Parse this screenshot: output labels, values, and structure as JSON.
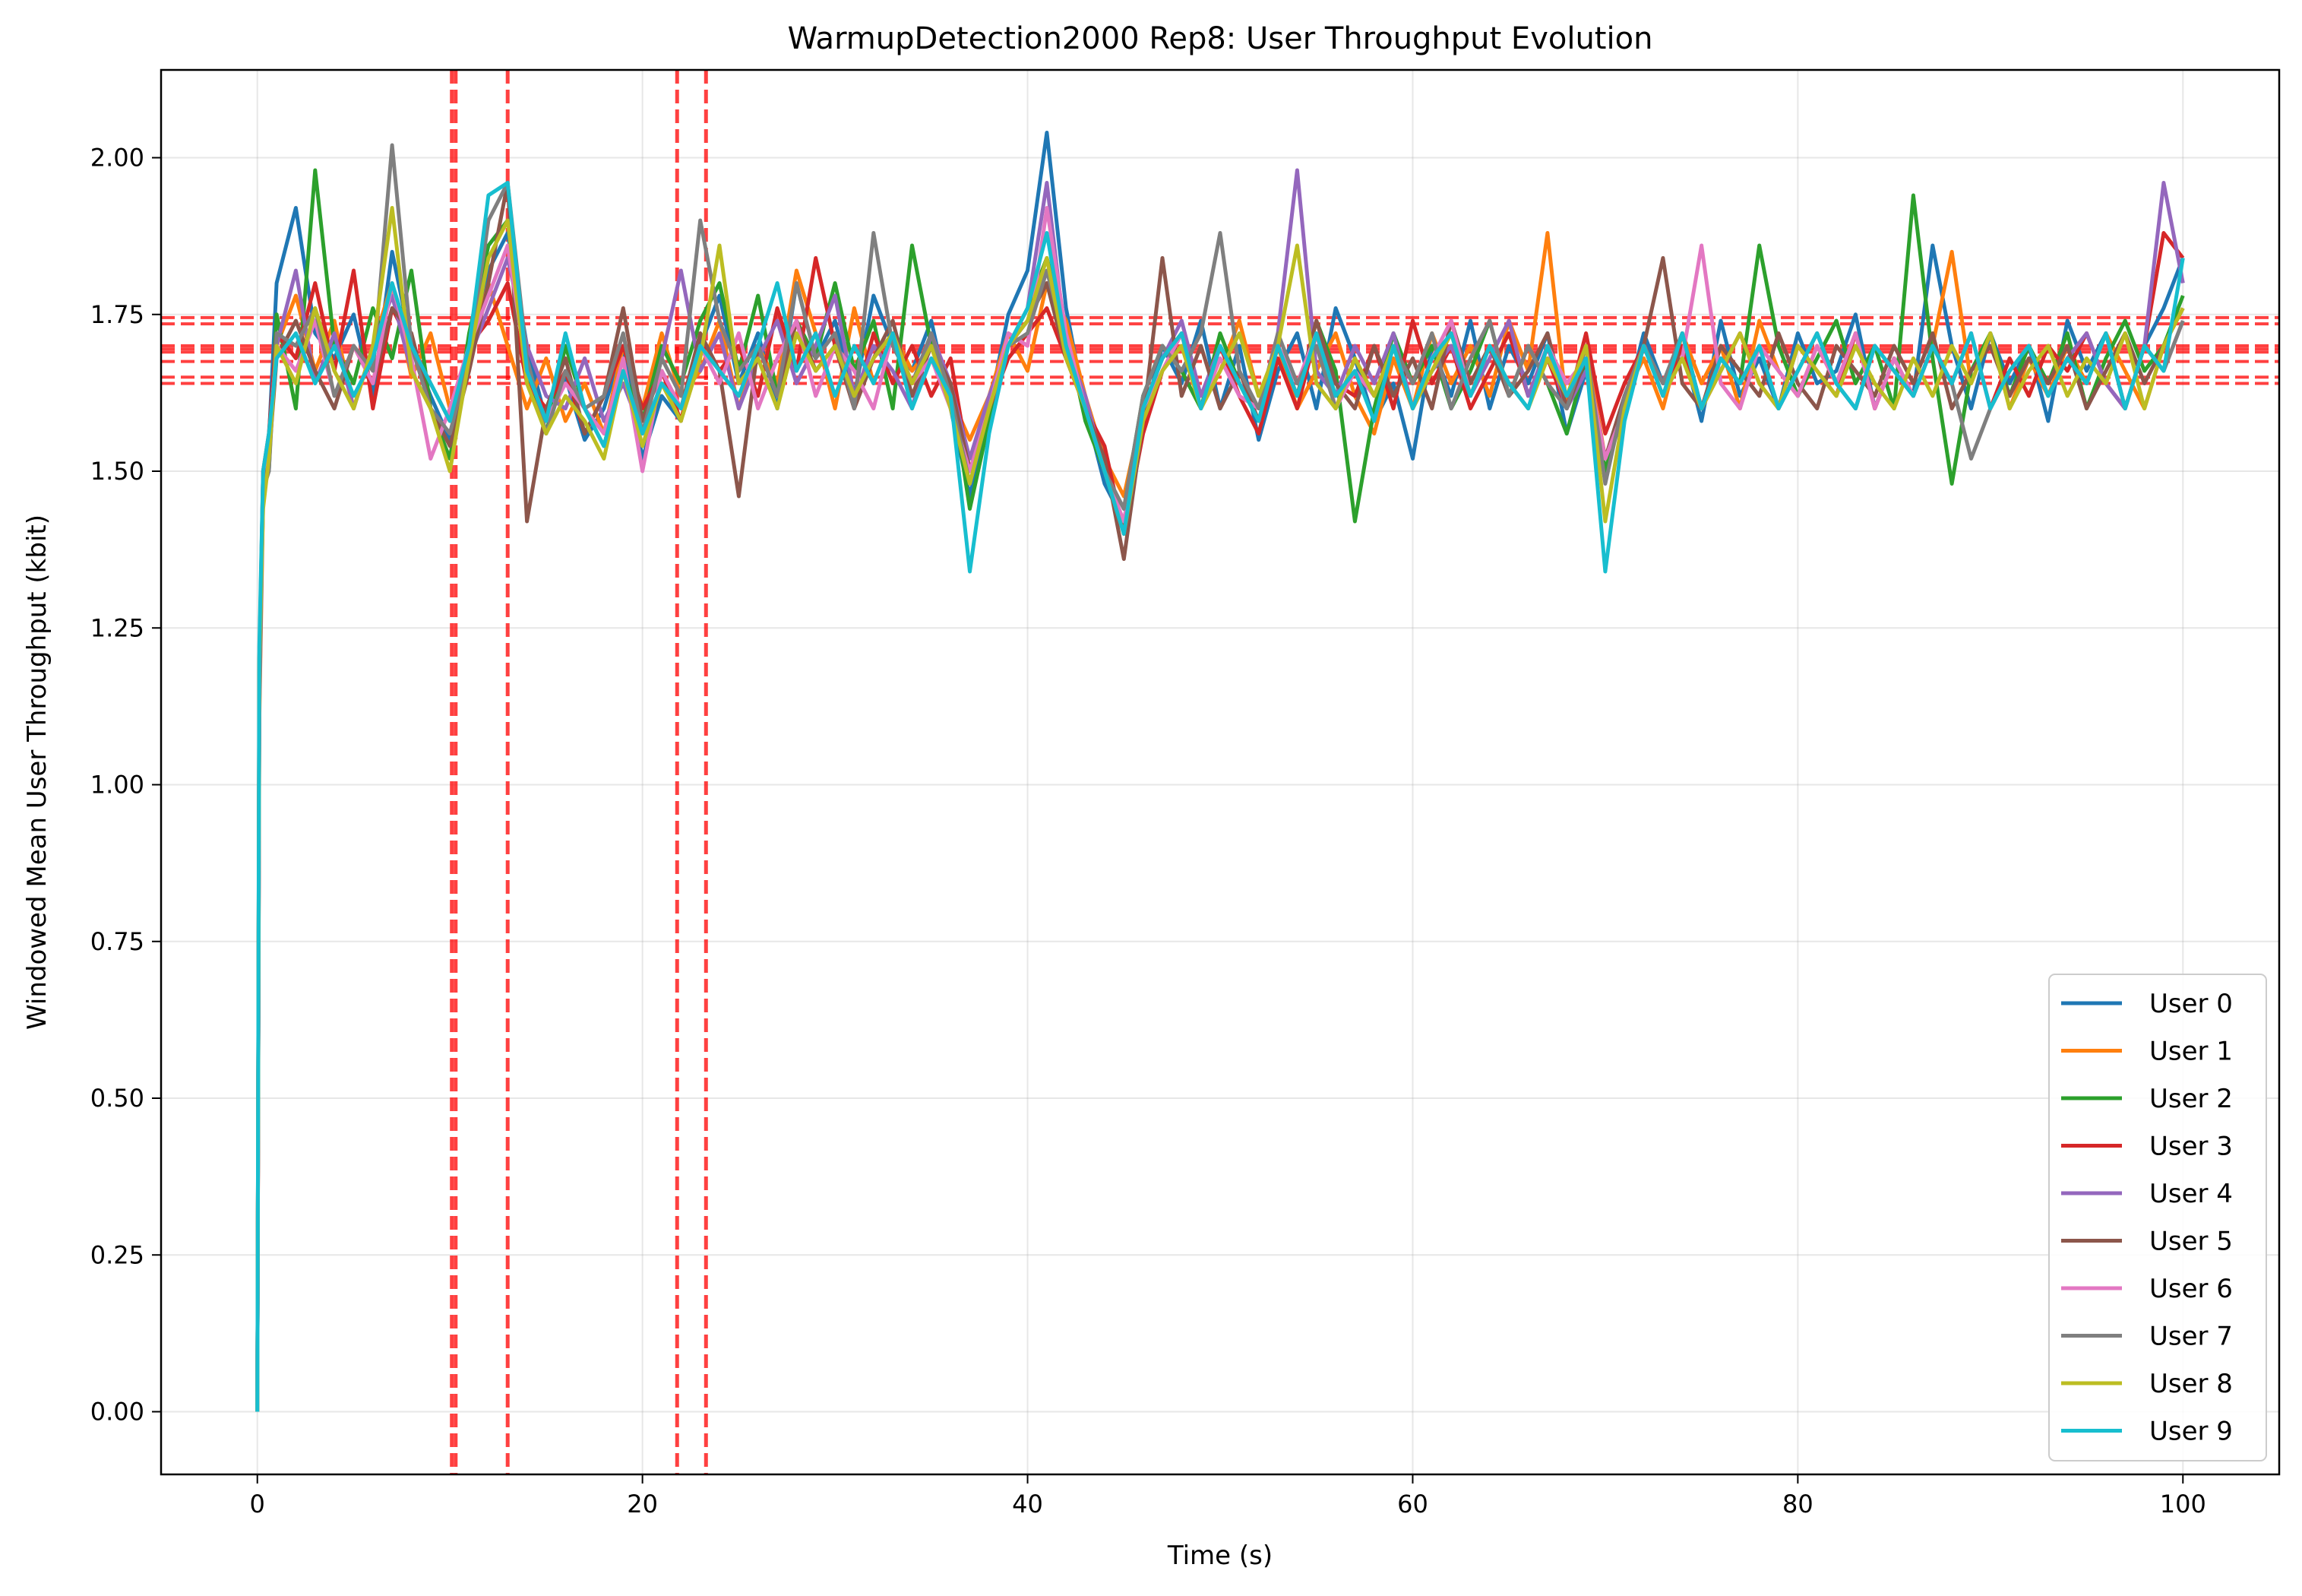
{
  "chart_data": {
    "type": "line",
    "title": "WarmupDetection2000 Rep8: User Throughput Evolution",
    "xlabel": "Time (s)",
    "ylabel": "Windowed Mean User Throughput (kbit)",
    "xlim": [
      -5,
      105
    ],
    "ylim": [
      -0.1,
      2.14
    ],
    "xticks": [
      0,
      20,
      40,
      60,
      80,
      100
    ],
    "yticks": [
      0.0,
      0.25,
      0.5,
      0.75,
      1.0,
      1.25,
      1.5,
      1.75,
      2.0
    ],
    "xtick_labels": [
      "0",
      "20",
      "40",
      "60",
      "80",
      "100"
    ],
    "ytick_labels": [
      "0.00",
      "0.25",
      "0.50",
      "0.75",
      "1.00",
      "1.25",
      "1.50",
      "1.75",
      "2.00"
    ],
    "grid": true,
    "legend_position": "bottom-right",
    "x": [
      0,
      0.1,
      0.3,
      0.6,
      1,
      2,
      3,
      4,
      5,
      6,
      7,
      8,
      9,
      10,
      11,
      12,
      13,
      14,
      15,
      16,
      17,
      18,
      19,
      20,
      21,
      22,
      23,
      24,
      25,
      26,
      27,
      28,
      29,
      30,
      31,
      32,
      33,
      34,
      35,
      36,
      37,
      38,
      39,
      40,
      41,
      42,
      43,
      44,
      45,
      46,
      47,
      48,
      49,
      50,
      51,
      52,
      53,
      54,
      55,
      56,
      57,
      58,
      59,
      60,
      61,
      62,
      63,
      64,
      65,
      66,
      67,
      68,
      69,
      70,
      71,
      72,
      73,
      74,
      75,
      76,
      77,
      78,
      79,
      80,
      81,
      82,
      83,
      84,
      85,
      86,
      87,
      88,
      89,
      90,
      91,
      92,
      93,
      94,
      95,
      96,
      97,
      98,
      99,
      100
    ],
    "series": [
      {
        "name": "User 0",
        "color": "#1f77b4",
        "values": [
          0.0,
          1.2,
          1.5,
          1.55,
          1.8,
          1.92,
          1.72,
          1.68,
          1.75,
          1.62,
          1.85,
          1.7,
          1.62,
          1.55,
          1.7,
          1.82,
          1.88,
          1.7,
          1.58,
          1.65,
          1.55,
          1.6,
          1.7,
          1.52,
          1.62,
          1.58,
          1.7,
          1.78,
          1.64,
          1.72,
          1.6,
          1.8,
          1.68,
          1.74,
          1.62,
          1.78,
          1.7,
          1.66,
          1.74,
          1.6,
          1.46,
          1.6,
          1.75,
          1.82,
          2.04,
          1.76,
          1.6,
          1.48,
          1.42,
          1.58,
          1.7,
          1.64,
          1.74,
          1.6,
          1.7,
          1.55,
          1.66,
          1.72,
          1.6,
          1.76,
          1.68,
          1.58,
          1.64,
          1.52,
          1.7,
          1.62,
          1.74,
          1.6,
          1.7,
          1.64,
          1.72,
          1.56,
          1.66,
          1.5,
          1.6,
          1.72,
          1.64,
          1.7,
          1.58,
          1.74,
          1.62,
          1.68,
          1.6,
          1.72,
          1.64,
          1.66,
          1.75,
          1.6,
          1.68,
          1.62,
          1.86,
          1.7,
          1.6,
          1.72,
          1.64,
          1.7,
          1.58,
          1.74,
          1.66,
          1.72,
          1.6,
          1.7,
          1.76,
          1.84
        ]
      },
      {
        "name": "User 1",
        "color": "#ff7f0e",
        "values": [
          0.0,
          1.1,
          1.45,
          1.52,
          1.7,
          1.78,
          1.66,
          1.74,
          1.6,
          1.7,
          1.8,
          1.65,
          1.72,
          1.6,
          1.68,
          1.8,
          1.7,
          1.6,
          1.68,
          1.58,
          1.64,
          1.56,
          1.7,
          1.6,
          1.72,
          1.62,
          1.66,
          1.74,
          1.6,
          1.7,
          1.64,
          1.82,
          1.72,
          1.6,
          1.76,
          1.64,
          1.72,
          1.66,
          1.7,
          1.62,
          1.55,
          1.62,
          1.72,
          1.66,
          1.8,
          1.74,
          1.62,
          1.52,
          1.46,
          1.6,
          1.68,
          1.72,
          1.6,
          1.66,
          1.74,
          1.62,
          1.7,
          1.6,
          1.66,
          1.72,
          1.62,
          1.56,
          1.68,
          1.6,
          1.72,
          1.64,
          1.7,
          1.62,
          1.74,
          1.66,
          1.88,
          1.6,
          1.7,
          1.52,
          1.62,
          1.68,
          1.6,
          1.72,
          1.64,
          1.7,
          1.6,
          1.74,
          1.66,
          1.62,
          1.7,
          1.64,
          1.72,
          1.6,
          1.68,
          1.62,
          1.7,
          1.85,
          1.64,
          1.72,
          1.6,
          1.68,
          1.62,
          1.7,
          1.64,
          1.72,
          1.66,
          1.6,
          1.7,
          1.76
        ]
      },
      {
        "name": "User 2",
        "color": "#2ca02c",
        "values": [
          0.0,
          1.15,
          1.48,
          1.5,
          1.75,
          1.6,
          1.98,
          1.7,
          1.64,
          1.76,
          1.68,
          1.82,
          1.6,
          1.52,
          1.72,
          1.86,
          1.9,
          1.66,
          1.56,
          1.7,
          1.6,
          1.54,
          1.66,
          1.58,
          1.7,
          1.64,
          1.74,
          1.8,
          1.66,
          1.78,
          1.62,
          1.74,
          1.68,
          1.8,
          1.66,
          1.74,
          1.6,
          1.86,
          1.7,
          1.64,
          1.44,
          1.58,
          1.7,
          1.76,
          1.84,
          1.72,
          1.58,
          1.5,
          1.44,
          1.62,
          1.7,
          1.66,
          1.6,
          1.72,
          1.64,
          1.58,
          1.7,
          1.62,
          1.74,
          1.66,
          1.42,
          1.6,
          1.72,
          1.64,
          1.7,
          1.6,
          1.66,
          1.74,
          1.62,
          1.7,
          1.64,
          1.56,
          1.68,
          1.5,
          1.62,
          1.7,
          1.64,
          1.72,
          1.6,
          1.68,
          1.64,
          1.86,
          1.7,
          1.62,
          1.68,
          1.74,
          1.64,
          1.7,
          1.6,
          1.94,
          1.68,
          1.48,
          1.66,
          1.72,
          1.62,
          1.7,
          1.64,
          1.72,
          1.6,
          1.68,
          1.74,
          1.66,
          1.7,
          1.78
        ]
      },
      {
        "name": "User 3",
        "color": "#d62728",
        "values": [
          0.0,
          1.18,
          1.5,
          1.56,
          1.72,
          1.68,
          1.8,
          1.66,
          1.82,
          1.6,
          1.76,
          1.7,
          1.64,
          1.58,
          1.7,
          1.74,
          1.8,
          1.64,
          1.6,
          1.66,
          1.56,
          1.62,
          1.7,
          1.6,
          1.66,
          1.58,
          1.72,
          1.66,
          1.7,
          1.62,
          1.76,
          1.66,
          1.84,
          1.7,
          1.6,
          1.72,
          1.64,
          1.7,
          1.62,
          1.68,
          1.5,
          1.6,
          1.68,
          1.72,
          1.76,
          1.68,
          1.6,
          1.54,
          1.4,
          1.56,
          1.66,
          1.72,
          1.6,
          1.7,
          1.62,
          1.56,
          1.68,
          1.6,
          1.72,
          1.64,
          1.62,
          1.7,
          1.6,
          1.74,
          1.64,
          1.7,
          1.6,
          1.66,
          1.72,
          1.62,
          1.68,
          1.6,
          1.72,
          1.56,
          1.64,
          1.7,
          1.62,
          1.7,
          1.6,
          1.66,
          1.72,
          1.64,
          1.6,
          1.7,
          1.66,
          1.62,
          1.72,
          1.6,
          1.68,
          1.62,
          1.7,
          1.64,
          1.72,
          1.6,
          1.68,
          1.62,
          1.7,
          1.66,
          1.72,
          1.64,
          1.6,
          1.7,
          1.88,
          1.84
        ]
      },
      {
        "name": "User 4",
        "color": "#9467bd",
        "values": [
          0.0,
          1.12,
          1.46,
          1.54,
          1.7,
          1.82,
          1.64,
          1.72,
          1.6,
          1.7,
          1.78,
          1.66,
          1.6,
          1.56,
          1.68,
          1.76,
          1.84,
          1.7,
          1.62,
          1.6,
          1.68,
          1.58,
          1.64,
          1.56,
          1.68,
          1.82,
          1.66,
          1.72,
          1.6,
          1.68,
          1.74,
          1.64,
          1.7,
          1.78,
          1.62,
          1.7,
          1.66,
          1.6,
          1.72,
          1.64,
          1.52,
          1.62,
          1.7,
          1.76,
          1.96,
          1.7,
          1.62,
          1.5,
          1.44,
          1.6,
          1.68,
          1.74,
          1.62,
          1.7,
          1.64,
          1.6,
          1.72,
          1.98,
          1.66,
          1.62,
          1.7,
          1.64,
          1.72,
          1.6,
          1.66,
          1.7,
          1.62,
          1.68,
          1.74,
          1.62,
          1.7,
          1.6,
          1.66,
          1.52,
          1.62,
          1.7,
          1.64,
          1.72,
          1.6,
          1.68,
          1.64,
          1.7,
          1.6,
          1.66,
          1.72,
          1.64,
          1.6,
          1.7,
          1.66,
          1.62,
          1.7,
          1.64,
          1.72,
          1.6,
          1.66,
          1.7,
          1.62,
          1.68,
          1.72,
          1.64,
          1.6,
          1.7,
          1.96,
          1.8
        ]
      },
      {
        "name": "User 5",
        "color": "#8c564b",
        "values": [
          0.0,
          1.14,
          1.48,
          1.52,
          1.68,
          1.74,
          1.66,
          1.6,
          1.7,
          1.64,
          1.76,
          1.72,
          1.6,
          1.54,
          1.66,
          1.8,
          1.96,
          1.42,
          1.6,
          1.68,
          1.56,
          1.62,
          1.76,
          1.58,
          1.66,
          1.6,
          1.72,
          1.66,
          1.46,
          1.7,
          1.62,
          1.74,
          1.66,
          1.7,
          1.6,
          1.68,
          1.74,
          1.62,
          1.7,
          1.64,
          1.5,
          1.6,
          1.7,
          1.74,
          1.8,
          1.68,
          1.6,
          1.52,
          1.36,
          1.58,
          1.84,
          1.62,
          1.7,
          1.6,
          1.66,
          1.58,
          1.7,
          1.62,
          1.74,
          1.64,
          1.6,
          1.7,
          1.62,
          1.68,
          1.6,
          1.74,
          1.64,
          1.7,
          1.62,
          1.66,
          1.72,
          1.6,
          1.68,
          1.52,
          1.62,
          1.7,
          1.84,
          1.64,
          1.6,
          1.7,
          1.66,
          1.62,
          1.72,
          1.64,
          1.6,
          1.7,
          1.66,
          1.62,
          1.7,
          1.64,
          1.72,
          1.6,
          1.66,
          1.7,
          1.62,
          1.68,
          1.64,
          1.7,
          1.6,
          1.66,
          1.72,
          1.64,
          1.7,
          1.76
        ]
      },
      {
        "name": "User 6",
        "color": "#e377c2",
        "values": [
          0.0,
          1.16,
          1.5,
          1.54,
          1.7,
          1.66,
          1.74,
          1.62,
          1.7,
          1.64,
          1.8,
          1.68,
          1.52,
          1.6,
          1.7,
          1.78,
          1.86,
          1.66,
          1.58,
          1.64,
          1.6,
          1.56,
          1.68,
          1.5,
          1.66,
          1.6,
          1.7,
          1.64,
          1.72,
          1.6,
          1.68,
          1.74,
          1.62,
          1.7,
          1.66,
          1.6,
          1.72,
          1.64,
          1.68,
          1.6,
          1.5,
          1.6,
          1.72,
          1.7,
          1.92,
          1.72,
          1.6,
          1.5,
          1.42,
          1.6,
          1.66,
          1.72,
          1.6,
          1.68,
          1.62,
          1.6,
          1.7,
          1.64,
          1.72,
          1.6,
          1.66,
          1.62,
          1.7,
          1.6,
          1.68,
          1.74,
          1.62,
          1.7,
          1.64,
          1.6,
          1.7,
          1.64,
          1.68,
          1.52,
          1.6,
          1.7,
          1.62,
          1.68,
          1.86,
          1.64,
          1.6,
          1.7,
          1.66,
          1.62,
          1.7,
          1.64,
          1.72,
          1.6,
          1.68,
          1.62,
          1.7,
          1.64,
          1.72,
          1.6,
          1.66,
          1.7,
          1.62,
          1.68,
          1.64,
          1.72,
          1.6,
          1.7,
          1.66,
          1.74
        ]
      },
      {
        "name": "User 7",
        "color": "#7f7f7f",
        "values": [
          0.0,
          1.13,
          1.47,
          1.5,
          1.72,
          1.7,
          1.76,
          1.62,
          1.7,
          1.66,
          2.02,
          1.7,
          1.6,
          1.56,
          1.68,
          1.9,
          1.96,
          1.68,
          1.56,
          1.66,
          1.6,
          1.62,
          1.72,
          1.56,
          1.68,
          1.62,
          1.9,
          1.74,
          1.66,
          1.7,
          1.62,
          1.8,
          1.68,
          1.72,
          1.6,
          1.88,
          1.7,
          1.64,
          1.72,
          1.62,
          1.48,
          1.6,
          1.7,
          1.72,
          1.82,
          1.7,
          1.6,
          1.5,
          1.44,
          1.62,
          1.7,
          1.66,
          1.72,
          1.88,
          1.66,
          1.6,
          1.72,
          1.64,
          1.7,
          1.6,
          1.68,
          1.62,
          1.7,
          1.64,
          1.72,
          1.6,
          1.68,
          1.74,
          1.62,
          1.7,
          1.64,
          1.6,
          1.7,
          1.48,
          1.62,
          1.7,
          1.64,
          1.72,
          1.6,
          1.68,
          1.64,
          1.7,
          1.6,
          1.66,
          1.72,
          1.64,
          1.6,
          1.7,
          1.66,
          1.62,
          1.7,
          1.64,
          1.52,
          1.6,
          1.66,
          1.7,
          1.62,
          1.68,
          1.64,
          1.72,
          1.6,
          1.7,
          1.66,
          1.74
        ]
      },
      {
        "name": "User 8",
        "color": "#bcbd22",
        "values": [
          0.0,
          1.2,
          1.44,
          1.52,
          1.7,
          1.64,
          1.76,
          1.66,
          1.6,
          1.7,
          1.92,
          1.66,
          1.6,
          1.5,
          1.68,
          1.84,
          1.9,
          1.64,
          1.56,
          1.62,
          1.58,
          1.52,
          1.66,
          1.54,
          1.64,
          1.58,
          1.68,
          1.86,
          1.64,
          1.68,
          1.6,
          1.72,
          1.66,
          1.7,
          1.62,
          1.68,
          1.72,
          1.64,
          1.7,
          1.6,
          1.48,
          1.6,
          1.7,
          1.74,
          1.84,
          1.68,
          1.6,
          1.5,
          1.4,
          1.58,
          1.66,
          1.7,
          1.6,
          1.66,
          1.72,
          1.62,
          1.7,
          1.86,
          1.64,
          1.6,
          1.68,
          1.62,
          1.7,
          1.6,
          1.66,
          1.72,
          1.62,
          1.7,
          1.64,
          1.6,
          1.68,
          1.62,
          1.7,
          1.42,
          1.6,
          1.7,
          1.62,
          1.68,
          1.6,
          1.66,
          1.72,
          1.64,
          1.6,
          1.7,
          1.66,
          1.62,
          1.7,
          1.64,
          1.6,
          1.68,
          1.62,
          1.7,
          1.64,
          1.72,
          1.6,
          1.66,
          1.7,
          1.62,
          1.68,
          1.64,
          1.72,
          1.6,
          1.7,
          1.76
        ]
      },
      {
        "name": "User 9",
        "color": "#17becf",
        "values": [
          0.0,
          1.22,
          1.5,
          1.56,
          1.68,
          1.72,
          1.64,
          1.7,
          1.62,
          1.68,
          1.8,
          1.7,
          1.64,
          1.58,
          1.7,
          1.94,
          1.96,
          1.66,
          1.58,
          1.72,
          1.6,
          1.54,
          1.66,
          1.56,
          1.64,
          1.6,
          1.7,
          1.66,
          1.62,
          1.7,
          1.8,
          1.66,
          1.72,
          1.62,
          1.7,
          1.64,
          1.72,
          1.6,
          1.68,
          1.62,
          1.34,
          1.56,
          1.7,
          1.76,
          1.88,
          1.7,
          1.6,
          1.5,
          1.4,
          1.6,
          1.68,
          1.72,
          1.6,
          1.7,
          1.64,
          1.58,
          1.7,
          1.62,
          1.72,
          1.62,
          1.66,
          1.58,
          1.7,
          1.6,
          1.68,
          1.72,
          1.62,
          1.7,
          1.64,
          1.6,
          1.7,
          1.62,
          1.68,
          1.34,
          1.58,
          1.7,
          1.62,
          1.72,
          1.6,
          1.68,
          1.64,
          1.7,
          1.6,
          1.66,
          1.72,
          1.64,
          1.6,
          1.7,
          1.66,
          1.62,
          1.7,
          1.64,
          1.72,
          1.6,
          1.66,
          1.7,
          1.62,
          1.68,
          1.64,
          1.72,
          1.6,
          1.7,
          1.66,
          1.84
        ]
      }
    ],
    "vlines": [
      10.1,
      10.3,
      13.0,
      21.8,
      23.3
    ],
    "hlines": [
      1.64,
      1.65,
      1.675,
      1.69,
      1.695,
      1.7,
      1.735,
      1.745
    ],
    "reference_line_color": "#ff0000"
  }
}
